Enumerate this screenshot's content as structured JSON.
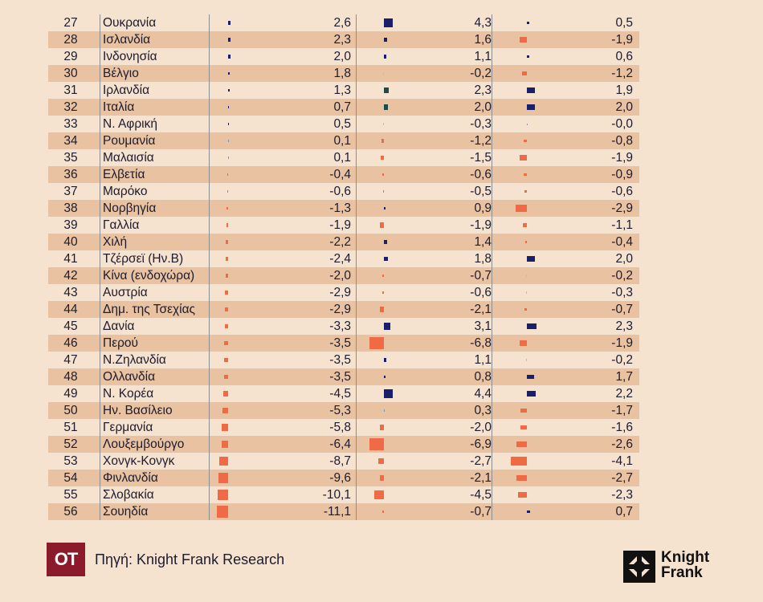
{
  "chart_data": {
    "type": "table",
    "rows": [
      {
        "rank": "27",
        "country": "Ουκρανία",
        "v1": "2,6",
        "v2": "4,3",
        "v3": "0,5"
      },
      {
        "rank": "28",
        "country": "Ισλανδία",
        "v1": "2,3",
        "v2": "1,6",
        "v3": "-1,9"
      },
      {
        "rank": "29",
        "country": "Ινδονησία",
        "v1": "2,0",
        "v2": "1,1",
        "v3": "0,6"
      },
      {
        "rank": "30",
        "country": "Βέλγιο",
        "v1": "1,8",
        "v2": "-0,2",
        "v3": "-1,2"
      },
      {
        "rank": "31",
        "country": "Ιρλανδία",
        "v1": "1,3",
        "v2": "2,3",
        "v3": "1,9"
      },
      {
        "rank": "32",
        "country": "Ιταλία",
        "v1": "0,7",
        "v2": "2,0",
        "v3": "2,0"
      },
      {
        "rank": "33",
        "country": "Ν. Αφρική",
        "v1": "0,5",
        "v2": "-0,3",
        "v3": "-0,0"
      },
      {
        "rank": "34",
        "country": "Ρουμανία",
        "v1": "0,1",
        "v2": "-1,2",
        "v3": "-0,8"
      },
      {
        "rank": "35",
        "country": "Μαλαισία",
        "v1": "0,1",
        "v2": "-1,5",
        "v3": "-1,9"
      },
      {
        "rank": "36",
        "country": "Ελβετία",
        "v1": "-0,4",
        "v2": "-0,6",
        "v3": "-0,9"
      },
      {
        "rank": "37",
        "country": "Μαρόκο",
        "v1": "-0,6",
        "v2": "-0,5",
        "v3": "-0,6"
      },
      {
        "rank": "38",
        "country": "Νορβηγία",
        "v1": "-1,3",
        "v2": "0,9",
        "v3": "-2,9"
      },
      {
        "rank": "39",
        "country": "Γαλλία",
        "v1": "-1,9",
        "v2": "-1,9",
        "v3": "-1,1"
      },
      {
        "rank": "40",
        "country": "Χιλή",
        "v1": "-2,2",
        "v2": "1,4",
        "v3": "-0,4"
      },
      {
        "rank": "41",
        "country": "Τζέρσεϊ (Ην.Β)",
        "v1": "-2,4",
        "v2": "1,8",
        "v3": "2,0"
      },
      {
        "rank": "42",
        "country": "Κίνα (ενδοχώρα)",
        "v1": "-2,0",
        "v2": "-0,7",
        "v3": "-0,2"
      },
      {
        "rank": "43",
        "country": "Αυστρία",
        "v1": "-2,9",
        "v2": "-0,6",
        "v3": "-0,3"
      },
      {
        "rank": "44",
        "country": "Δημ. της Τσεχίας",
        "v1": "-2,9",
        "v2": "-2,1",
        "v3": "-0,7"
      },
      {
        "rank": "45",
        "country": "Δανία",
        "v1": "-3,3",
        "v2": "3,1",
        "v3": "2,3"
      },
      {
        "rank": "46",
        "country": "Περού",
        "v1": "-3,5",
        "v2": "-6,8",
        "v3": "-1,9"
      },
      {
        "rank": "47",
        "country": "Ν.Ζηλανδία",
        "v1": "-3,5",
        "v2": "1,1",
        "v3": "-0,2"
      },
      {
        "rank": "48",
        "country": "Ολλανδία",
        "v1": "-3,5",
        "v2": "0,8",
        "v3": "1,7"
      },
      {
        "rank": "49",
        "country": "Ν. Κορέα",
        "v1": "-4,5",
        "v2": "4,4",
        "v3": "2,2"
      },
      {
        "rank": "50",
        "country": "Ην. Βασίλειο",
        "v1": "-5,3",
        "v2": "0,3",
        "v3": "-1,7"
      },
      {
        "rank": "51",
        "country": "Γερμανία",
        "v1": "-5,8",
        "v2": "-2,0",
        "v3": "-1,6"
      },
      {
        "rank": "52",
        "country": "Λουξεμβούργο",
        "v1": "-6,4",
        "v2": "-6,9",
        "v3": "-2,6"
      },
      {
        "rank": "53",
        "country": "Χονγκ-Κονγκ",
        "v1": "-8,7",
        "v2": "-2,7",
        "v3": "-4,1"
      },
      {
        "rank": "54",
        "country": "Φινλανδία",
        "v1": "-9,6",
        "v2": "-2,1",
        "v3": "-2,7"
      },
      {
        "rank": "55",
        "country": "Σλοβακία",
        "v1": "-10,1",
        "v2": "-4,5",
        "v3": "-2,3"
      },
      {
        "rank": "56",
        "country": "Σουηδία",
        "v1": "-11,1",
        "v2": "-0,7",
        "v3": "0,7"
      }
    ],
    "colors": {
      "positive": "#1a1f6b",
      "negative": "#f06a45",
      "positive_alt": "#1f4a4a",
      "row_alt": "#e8c2a1",
      "background": "#f5e2cf"
    }
  },
  "footer": {
    "logo_text": "OT",
    "source": "Πηγή: Knight Frank Research",
    "brand_line1": "Knight",
    "brand_line2": "Frank"
  }
}
